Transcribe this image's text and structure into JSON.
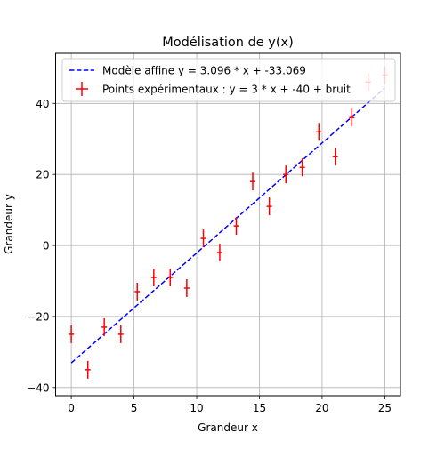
{
  "chart_data": {
    "type": "scatter",
    "title": "Modélisation de y(x)",
    "xlabel": "Grandeur x",
    "ylabel": "Grandeur y",
    "xlim": [
      -1.25,
      26.25
    ],
    "ylim": [
      -42.3,
      54.1
    ],
    "xticks": [
      0,
      5,
      10,
      15,
      20,
      25
    ],
    "yticks": [
      -40,
      -20,
      0,
      20,
      40
    ],
    "grid": true,
    "legend_position": "top-left",
    "points_color": "#ff0000",
    "line_color": "#0000ff",
    "yerr": 2.5,
    "fit_line": {
      "name": "Modèle affine y = 3.096 * x + -33.069",
      "slope": 3.096,
      "intercept": -33.069,
      "x_range": [
        0,
        25
      ]
    },
    "series": [
      {
        "name": "Points expérimentaux : y = 3 * x + -40 + bruit",
        "x": [
          0,
          1.32,
          2.63,
          3.95,
          5.26,
          6.58,
          7.89,
          9.21,
          10.53,
          11.84,
          13.16,
          14.47,
          15.79,
          17.11,
          18.42,
          19.74,
          21.05,
          22.37,
          23.68,
          25
        ],
        "y": [
          -25,
          -35,
          -23,
          -25,
          -13,
          -9,
          -9,
          -12,
          2,
          -2,
          5.5,
          18,
          11,
          20,
          22,
          32,
          25,
          36,
          46,
          48
        ]
      }
    ]
  }
}
